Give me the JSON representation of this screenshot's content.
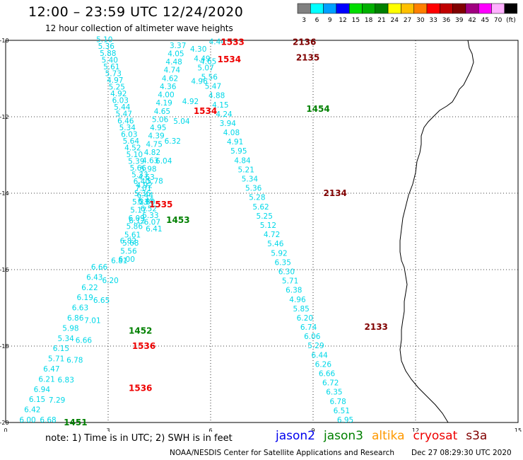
{
  "header": {
    "title": "12:00 – 23:59 UTC 12/24/2020",
    "subtitle": "12 hour collection of altimeter wave heights"
  },
  "color_scale": {
    "labels": [
      "3",
      "6",
      "9",
      "12",
      "15",
      "18",
      "21",
      "24",
      "27",
      "30",
      "33",
      "36",
      "39",
      "42",
      "45",
      "70",
      "(ft)"
    ],
    "colors": [
      "#808080",
      "#00ffff",
      "#00a0ff",
      "#0000ff",
      "#00dd00",
      "#00b000",
      "#008000",
      "#ffff00",
      "#ffc000",
      "#ff8000",
      "#ff0000",
      "#c00000",
      "#800000",
      "#a00080",
      "#ff00ff",
      "#ffb0ff",
      "#000000"
    ]
  },
  "axes": {
    "y_ticks": [
      "-10",
      "-12",
      "-14",
      "-16",
      "-18",
      "-20"
    ],
    "x_ticks": [
      "0",
      "3",
      "6",
      "9",
      "12",
      "15"
    ]
  },
  "footer": {
    "note": "note:  1) Time is in UTC; 2) SWH is in feet",
    "satellites": [
      {
        "name": "jason2",
        "color": "#0000ee"
      },
      {
        "name": "jason3",
        "color": "#008000"
      },
      {
        "name": "altika",
        "color": "#ff9900"
      },
      {
        "name": "cryosat",
        "color": "#ee0000"
      },
      {
        "name": "s3a",
        "color": "#800000"
      }
    ],
    "credit": "NOAA/NESDIS Center for Satellite Applications and Research",
    "generated": "Dec 27 08:29:30 UTC 2020"
  },
  "time_labels": [
    {
      "text": "1533",
      "color": "#ee0000",
      "lon": 6.3,
      "lat": -10.05
    },
    {
      "text": "2136",
      "color": "#800000",
      "lon": 8.4,
      "lat": -10.05
    },
    {
      "text": "1534",
      "color": "#ee0000",
      "lon": 6.2,
      "lat": -10.5
    },
    {
      "text": "2135",
      "color": "#800000",
      "lon": 8.5,
      "lat": -10.45
    },
    {
      "text": "1534",
      "color": "#ee0000",
      "lon": 5.5,
      "lat": -11.85
    },
    {
      "text": "1454",
      "color": "#008000",
      "lon": 8.8,
      "lat": -11.8
    },
    {
      "text": "2134",
      "color": "#800000",
      "lon": 9.3,
      "lat": -14.0
    },
    {
      "text": "1535",
      "color": "#ee0000",
      "lon": 4.2,
      "lat": -14.3
    },
    {
      "text": "1453",
      "color": "#008000",
      "lon": 4.7,
      "lat": -14.7
    },
    {
      "text": "2133",
      "color": "#800000",
      "lon": 10.5,
      "lat": -17.5
    },
    {
      "text": "1452",
      "color": "#008000",
      "lon": 3.6,
      "lat": -17.6
    },
    {
      "text": "1536",
      "color": "#ee0000",
      "lon": 3.7,
      "lat": -18.0
    },
    {
      "text": "1536",
      "color": "#ee0000",
      "lon": 3.6,
      "lat": -19.1
    },
    {
      "text": "1451",
      "color": "#008000",
      "lon": 1.7,
      "lat": -20.0
    }
  ],
  "tracks": [
    {
      "name": "cryosat-1533",
      "color": "#00d8e8",
      "start": [
        2.65,
        -10.05
      ],
      "end": [
        4.1,
        -15.0
      ],
      "values": [
        "5.10",
        "5.36",
        "5.88",
        "5.40",
        "5.61",
        "5.73",
        "4.97",
        "5.25",
        "4.92",
        "6.03",
        "5.44",
        "5.47",
        "6.46",
        "5.34",
        "6.03",
        "5.64",
        "4.52",
        "5.10",
        "5.39",
        "5.66",
        "5.33",
        "6.40",
        "7.01",
        "6.44",
        "5.80",
        "6.52",
        "6.33",
        "6.07",
        "6.41"
      ]
    },
    {
      "name": "cryosat-1535",
      "color": "#00d8e8",
      "start": [
        4.8,
        -10.2
      ],
      "end": [
        3.3,
        -15.8
      ],
      "values": [
        "3.37",
        "4.05",
        "4.48",
        "4.74",
        "4.62",
        "4.36",
        "4.00",
        "4.19",
        "4.65",
        "5.06",
        "4.95",
        "4.39",
        "4.75",
        "4.82",
        "4.63",
        "5.98",
        "4.63",
        "4.92",
        "5.36",
        "5.23",
        "5.17",
        "6.09",
        "5.86",
        "5.61",
        "5.68",
        "5.56",
        "6.00"
      ]
    },
    {
      "name": "s3a-2136",
      "color": "#00d8e8",
      "start": [
        5.4,
        -10.3
      ],
      "end": [
        9.7,
        -20.0
      ],
      "values": [
        "4.30",
        "4.49",
        "5.07",
        "5.56",
        "5.47",
        "4.88",
        "4.15",
        "4.24",
        "3.94",
        "4.08",
        "4.91",
        "5.95",
        "4.84",
        "5.21",
        "5.34",
        "5.36",
        "5.28",
        "5.62",
        "5.25",
        "5.12",
        "4.72",
        "5.46",
        "5.92",
        "6.35",
        "6.30",
        "5.71",
        "6.38",
        "4.96",
        "5.85",
        "6.20",
        "6.74",
        "6.06",
        "5.29",
        "6.44",
        "6.26",
        "6.66",
        "6.72",
        "6.35",
        "6.78",
        "6.51",
        "6.95"
      ]
    },
    {
      "name": "jason3-1454",
      "color": "#00d8e8",
      "start": [
        5.95,
        -10.1
      ],
      "end": [
        1.0,
        -20.0
      ],
      "values": [
        "4.44",
        "4.65",
        "4.96",
        "4.92",
        "5.04",
        "6.32",
        "6.04",
        "5.78",
        "6.45",
        "6.12",
        "6.82",
        "6.81",
        "6.20",
        "6.65",
        "7.01",
        "6.66",
        "6.78",
        "6.83",
        "7.29",
        "6.68"
      ]
    },
    {
      "name": "cryosat-1536",
      "color": "#00d8e8",
      "start": [
        2.5,
        -16.0
      ],
      "end": [
        0.4,
        -20.0
      ],
      "values": [
        "6.66",
        "6.43",
        "6.22",
        "6.19",
        "6.63",
        "6.86",
        "5.98",
        "5.34",
        "6.15",
        "5.71",
        "6.47",
        "6.21",
        "6.94",
        "6.15",
        "6.42",
        "6.00"
      ]
    }
  ]
}
